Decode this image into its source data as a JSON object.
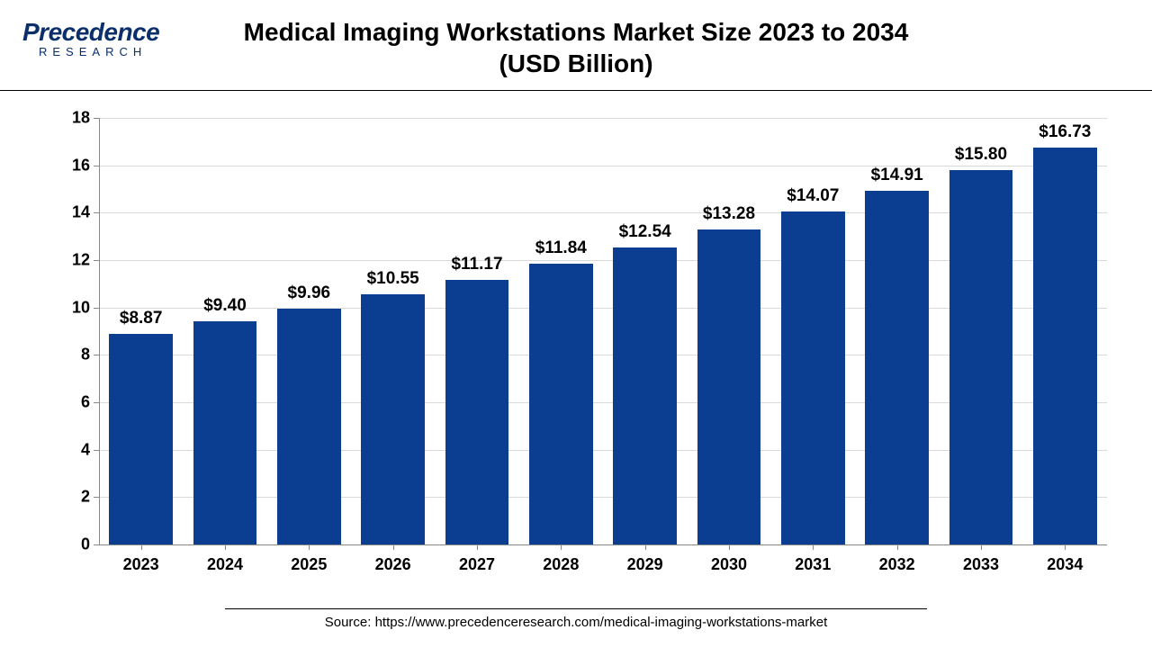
{
  "logo": {
    "main": "Precedence",
    "sub": "RESEARCH"
  },
  "chart": {
    "type": "bar",
    "title_line1": "Medical Imaging Workstations Market Size 2023 to 2034",
    "title_line2": "(USD Billion)",
    "title_fontsize": 28,
    "categories": [
      "2023",
      "2024",
      "2025",
      "2026",
      "2027",
      "2028",
      "2029",
      "2030",
      "2031",
      "2032",
      "2033",
      "2034"
    ],
    "values": [
      8.87,
      9.4,
      9.96,
      10.55,
      11.17,
      11.84,
      12.54,
      13.28,
      14.07,
      14.91,
      15.8,
      16.73
    ],
    "value_labels": [
      "$8.87",
      "$9.40",
      "$9.96",
      "$10.55",
      "$11.17",
      "$11.84",
      "$12.54",
      "$13.28",
      "$14.07",
      "$14.91",
      "$15.80",
      "$16.73"
    ],
    "bar_color": "#0b3d91",
    "background_color": "#ffffff",
    "grid_color": "#d9d9d9",
    "axis_color": "#888888",
    "ylim": [
      0,
      18
    ],
    "ytick_step": 2,
    "yticks": [
      0,
      2,
      4,
      6,
      8,
      10,
      12,
      14,
      16,
      18
    ],
    "label_fontsize": 18,
    "value_label_fontsize": 19,
    "bar_width_ratio": 0.76
  },
  "source": {
    "text": "Source: https://www.precedenceresearch.com/medical-imaging-workstations-market"
  }
}
